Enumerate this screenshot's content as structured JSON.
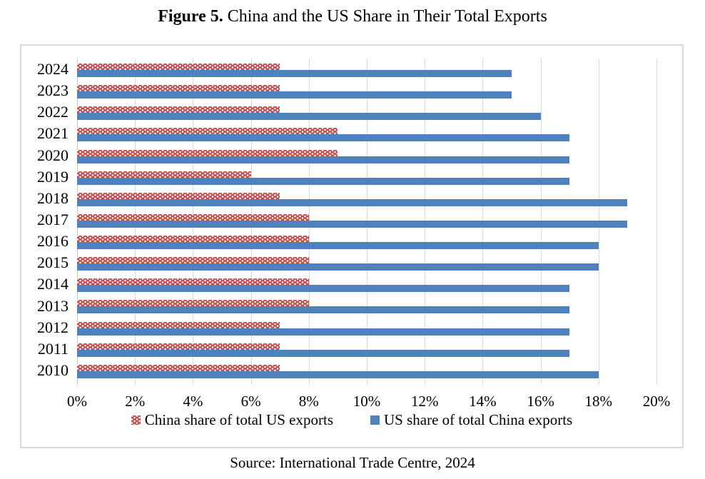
{
  "header": {
    "figure_label": "Figure 5.",
    "title_rest": "China and the US Share in Their Total Exports"
  },
  "chart_data": {
    "type": "bar",
    "orientation": "horizontal",
    "title": "Figure 5. China and the US Share in Their Total Exports",
    "category_order": "top-to-bottom",
    "categories": [
      "2024",
      "2023",
      "2022",
      "2021",
      "2020",
      "2019",
      "2018",
      "2017",
      "2016",
      "2015",
      "2014",
      "2013",
      "2012",
      "2011",
      "2010"
    ],
    "series": [
      {
        "name": "China share of total US exports",
        "color": "#C0504D",
        "fill_pattern": "white-dots",
        "values": [
          7,
          7,
          7,
          9,
          9,
          6,
          7,
          8,
          8,
          8,
          8,
          8,
          7,
          7,
          7
        ]
      },
      {
        "name": "US share of total China exports",
        "color": "#4F81BD",
        "fill_pattern": "solid",
        "values": [
          15,
          15,
          16,
          17,
          17,
          17,
          19,
          19,
          18,
          18,
          17,
          17,
          17,
          17,
          18
        ]
      }
    ],
    "xlim": [
      0,
      20
    ],
    "x_tick_labels": [
      "0%",
      "2%",
      "4%",
      "6%",
      "8%",
      "10%",
      "12%",
      "14%",
      "16%",
      "18%",
      "20%"
    ],
    "x_unit": "percent",
    "grid": "vertical",
    "legend_position": "bottom",
    "gridline_color": "#D9D9D9"
  },
  "footer": {
    "source": "Source: International Trade Centre, 2024"
  }
}
